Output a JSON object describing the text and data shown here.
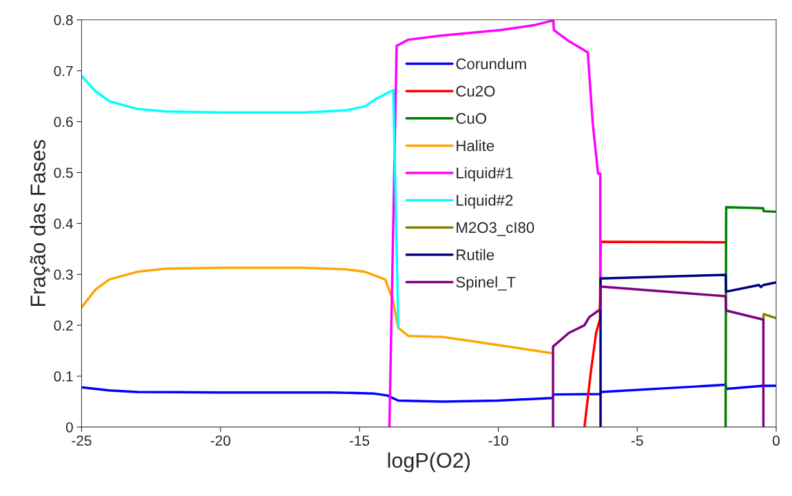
{
  "chart_data": {
    "type": "line",
    "xlabel": "logP(O2)",
    "ylabel": "Fração das Fases",
    "xlim": [
      -25,
      0
    ],
    "ylim": [
      0,
      0.8
    ],
    "xticks": [
      -25,
      -20,
      -15,
      -10,
      -5,
      0
    ],
    "yticks": [
      0,
      0.1,
      0.2,
      0.3,
      0.4,
      0.5,
      0.6,
      0.7,
      0.8
    ],
    "grid": false,
    "legend": "top",
    "line_style": "solid",
    "marker": "none",
    "series": [
      {
        "name": "Corundum",
        "color": "#0000ff",
        "x": [
          -25,
          -24,
          -23,
          -20,
          -16,
          -14.5,
          -14,
          -13.6,
          -12,
          -10,
          -8.05,
          -8.02,
          -6.33,
          -6.3,
          -1.82,
          -1.8,
          -0.46,
          0
        ],
        "values": [
          0.078,
          0.072,
          0.069,
          0.068,
          0.068,
          0.066,
          0.062,
          0.052,
          0.05,
          0.052,
          0.057,
          0.064,
          0.065,
          0.069,
          0.083,
          0.075,
          0.081,
          0.081
        ]
      },
      {
        "name": "Cu2O",
        "color": "#ff0000",
        "x": [
          -6.9,
          -6.68,
          -6.48,
          -6.34,
          -6.32,
          -1.82
        ],
        "values": [
          0,
          0.104,
          0.185,
          0.212,
          0.364,
          0.363
        ]
      },
      {
        "name": "CuO",
        "color": "#008000",
        "x": [
          -1.82,
          -1.8,
          -0.47,
          -0.45,
          0
        ],
        "values": [
          0,
          0.432,
          0.43,
          0.424,
          0.423
        ]
      },
      {
        "name": "Halite",
        "color": "#ffa500",
        "x": [
          -25,
          -24.5,
          -24,
          -23,
          -22,
          -20,
          -17,
          -15.5,
          -14.8,
          -14.07,
          -13.8,
          -13.6,
          -13.24,
          -12,
          -10.86,
          -8.05
        ],
        "values": [
          0.235,
          0.27,
          0.29,
          0.305,
          0.311,
          0.313,
          0.313,
          0.31,
          0.305,
          0.29,
          0.25,
          0.195,
          0.179,
          0.177,
          0.168,
          0.145
        ]
      },
      {
        "name": "Liquid#1",
        "color": "#ff00ff",
        "x": [
          -13.92,
          -13.66,
          -13.24,
          -12.07,
          -9.89,
          -8.67,
          -8.02,
          -8.0,
          -7.46,
          -6.78,
          -6.6,
          -6.41,
          -6.33,
          -6.33
        ],
        "values": [
          0,
          0.749,
          0.761,
          0.769,
          0.78,
          0.79,
          0.799,
          0.78,
          0.758,
          0.736,
          0.596,
          0.498,
          0.498,
          0.294
        ]
      },
      {
        "name": "Liquid#2",
        "color": "#00ffff",
        "x": [
          -25,
          -24.5,
          -24,
          -23,
          -22,
          -20,
          -17,
          -15.5,
          -14.8,
          -14.4,
          -13.78,
          -13.6
        ],
        "values": [
          0.69,
          0.66,
          0.64,
          0.625,
          0.62,
          0.618,
          0.618,
          0.622,
          0.63,
          0.645,
          0.662,
          0.198
        ]
      },
      {
        "name": "M2O3_cI80",
        "color": "#808000",
        "x": [
          -0.46,
          -0.45,
          0
        ],
        "values": [
          0.211,
          0.222,
          0.214
        ]
      },
      {
        "name": "Rutile",
        "color": "#000080",
        "x": [
          -6.32,
          -6.32,
          -1.82,
          -1.8,
          -0.62,
          -0.55,
          -0.46,
          0
        ],
        "values": [
          0,
          0.292,
          0.299,
          0.266,
          0.279,
          0.275,
          0.279,
          0.284
        ]
      },
      {
        "name": "Spinel_T",
        "color": "#800080",
        "x": [
          -8.03,
          -8.03,
          -7.46,
          -6.9,
          -6.73,
          -6.34,
          -6.32,
          -1.82,
          -1.8,
          -0.46,
          -0.46
        ],
        "values": [
          0,
          0.158,
          0.185,
          0.2,
          0.216,
          0.231,
          0.276,
          0.257,
          0.229,
          0.211,
          0
        ]
      }
    ]
  }
}
